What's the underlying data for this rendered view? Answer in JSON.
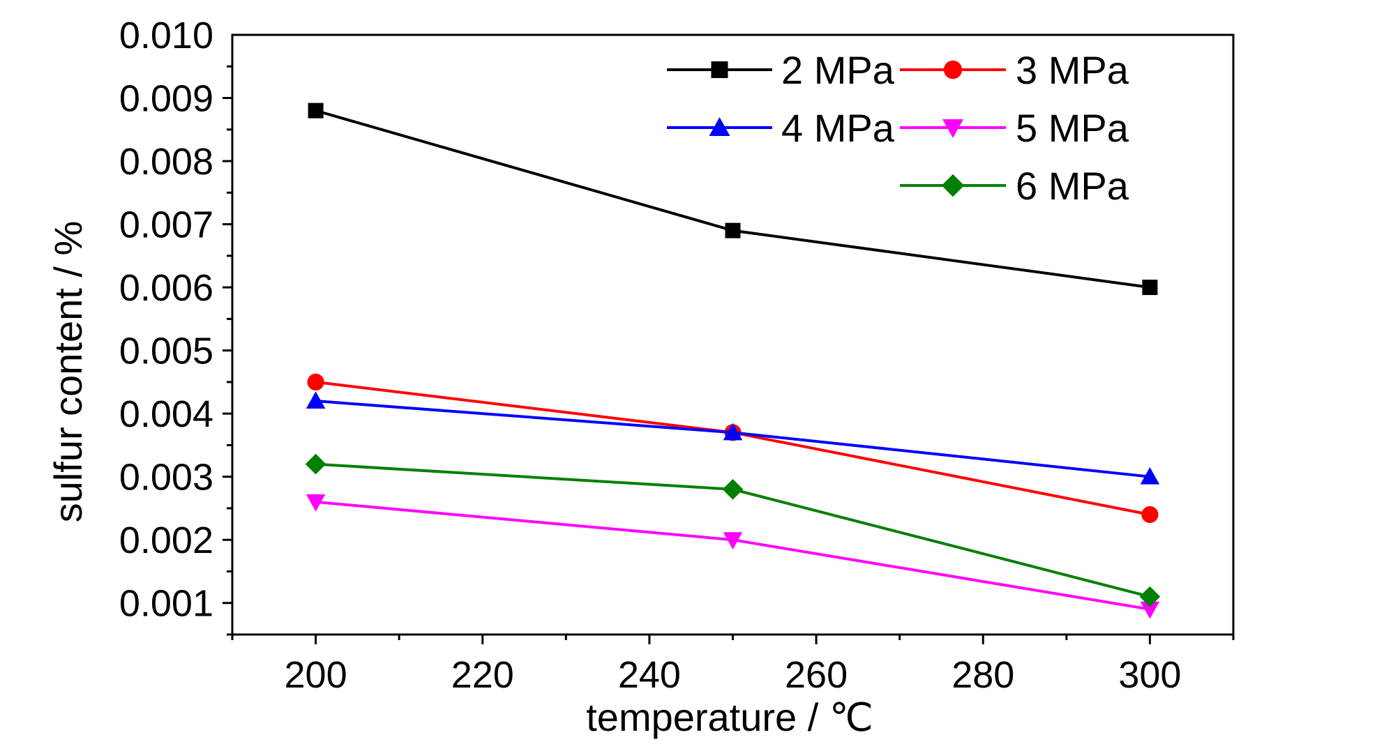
{
  "chart_data": {
    "type": "line",
    "title": "",
    "xlabel": "temperature / ℃",
    "ylabel": "sulfur content / %",
    "x": [
      200,
      250,
      300
    ],
    "xlim": [
      190,
      310
    ],
    "ylim": [
      0.0005,
      0.01
    ],
    "xticks": [
      200,
      220,
      240,
      260,
      280,
      300
    ],
    "xtick_labels": [
      "200",
      "220",
      "240",
      "260",
      "280",
      "300"
    ],
    "yticks": [
      0.001,
      0.002,
      0.003,
      0.004,
      0.005,
      0.006,
      0.007,
      0.008,
      0.009,
      0.01
    ],
    "ytick_labels": [
      "0.001",
      "0.002",
      "0.003",
      "0.004",
      "0.005",
      "0.006",
      "0.007",
      "0.008",
      "0.009",
      "0.010"
    ],
    "grid": false,
    "legend_position": "top-right",
    "series": [
      {
        "name": "2 MPa",
        "color": "#000000",
        "marker": "square",
        "values": [
          0.0088,
          0.0069,
          0.006
        ]
      },
      {
        "name": "3 MPa",
        "color": "#ff0000",
        "marker": "circle",
        "values": [
          0.0045,
          0.0037,
          0.0024
        ]
      },
      {
        "name": "4 MPa",
        "color": "#0000ff",
        "marker": "triangle-up",
        "values": [
          0.0042,
          0.0037,
          0.003
        ]
      },
      {
        "name": "5 MPa",
        "color": "#ff00ff",
        "marker": "triangle-down",
        "values": [
          0.0026,
          0.002,
          0.0009
        ]
      },
      {
        "name": "6 MPa",
        "color": "#008000",
        "marker": "diamond",
        "values": [
          0.0032,
          0.0028,
          0.0011
        ]
      }
    ]
  }
}
